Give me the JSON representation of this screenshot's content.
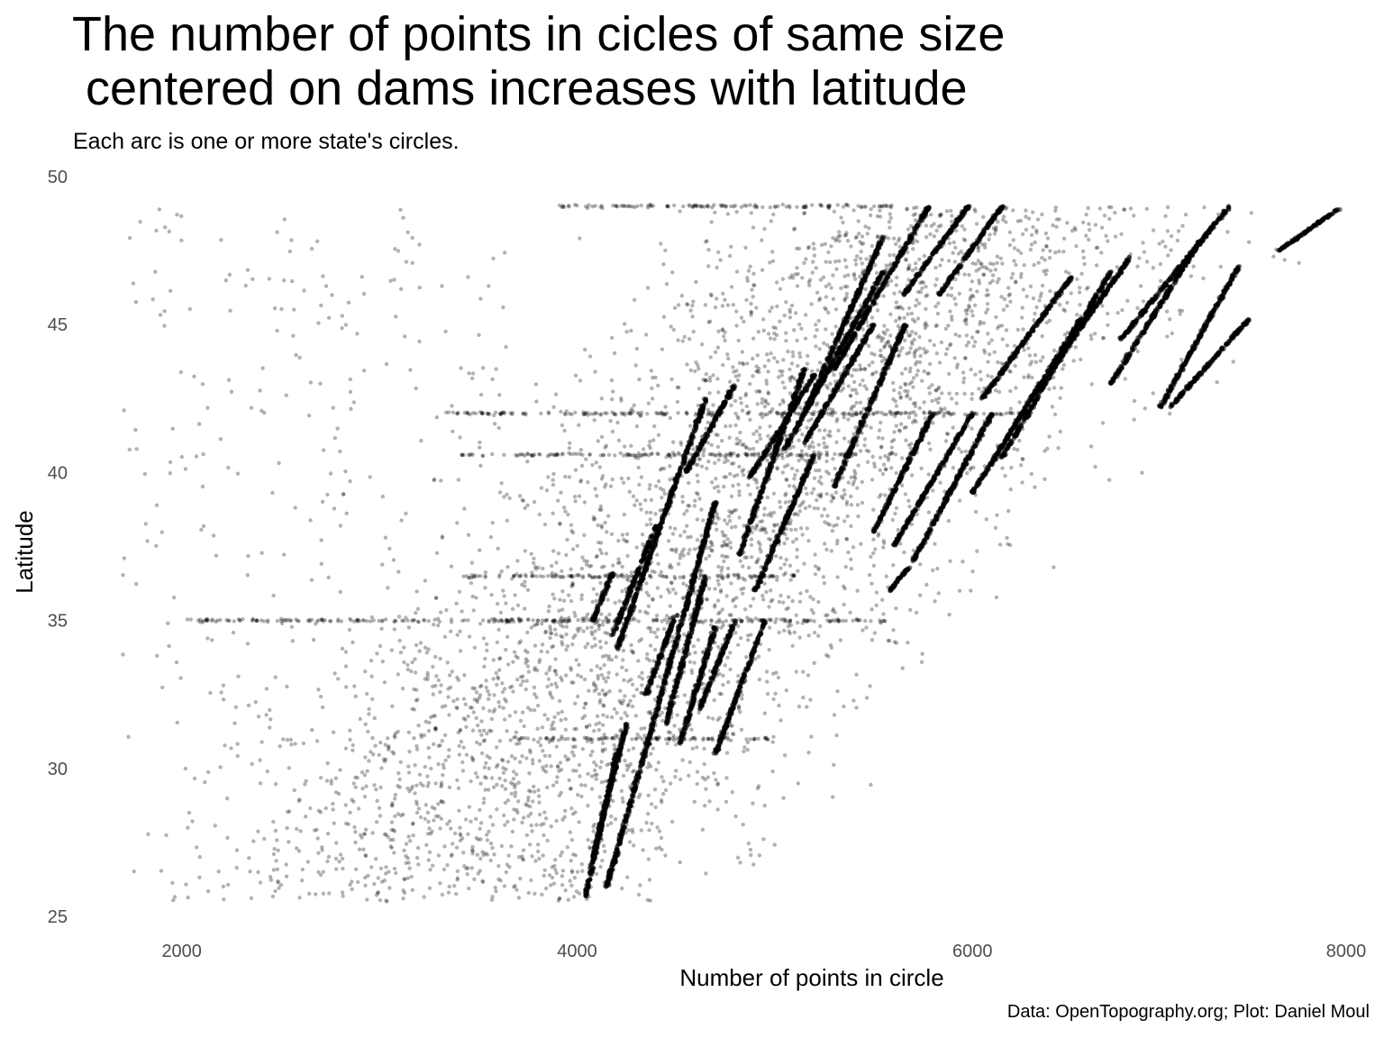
{
  "title": "The number of points in cicles of same size\n centered on dams increases with latitude",
  "subtitle": "Each arc is one or more state's circles.",
  "caption": "Data: OpenTopography.org; Plot: Daniel Moul",
  "chart_data": {
    "type": "scatter",
    "title": "The number of points in cicles of same size\n centered on dams increases with latitude",
    "subtitle": "Each arc is one or more state's circles.",
    "xlabel": "Number of points in circle",
    "ylabel": "Latitude",
    "xlim": [
      1500,
      8000
    ],
    "ylim": [
      25,
      50
    ],
    "xticks": [
      "2000",
      "4000",
      "6000",
      "8000"
    ],
    "yticks": [
      "25",
      "30",
      "35",
      "40",
      "45",
      "50"
    ],
    "grid": false,
    "point_color": "#000000",
    "point_opacity": 0.3,
    "arc_segments": [
      {
        "x0": 4040,
        "y0": 25.6,
        "x1": 4200,
        "y1": 30.5
      },
      {
        "x0": 4080,
        "y0": 27.0,
        "x1": 4250,
        "y1": 31.5
      },
      {
        "x0": 4150,
        "y0": 26.0,
        "x1": 4700,
        "y1": 39.0
      },
      {
        "x0": 4200,
        "y0": 34.0,
        "x1": 4650,
        "y1": 42.5
      },
      {
        "x0": 4080,
        "y0": 35.0,
        "x1": 4180,
        "y1": 36.6
      },
      {
        "x0": 4180,
        "y0": 34.5,
        "x1": 4400,
        "y1": 38.2
      },
      {
        "x0": 4350,
        "y0": 32.5,
        "x1": 4500,
        "y1": 35.2
      },
      {
        "x0": 4450,
        "y0": 31.5,
        "x1": 4650,
        "y1": 36.5
      },
      {
        "x0": 4520,
        "y0": 30.8,
        "x1": 4700,
        "y1": 34.8
      },
      {
        "x0": 4700,
        "y0": 30.5,
        "x1": 4950,
        "y1": 35.0
      },
      {
        "x0": 4620,
        "y0": 32.0,
        "x1": 4800,
        "y1": 35.0
      },
      {
        "x0": 4550,
        "y0": 40.0,
        "x1": 4800,
        "y1": 43.0
      },
      {
        "x0": 4820,
        "y0": 37.2,
        "x1": 5150,
        "y1": 43.5
      },
      {
        "x0": 4870,
        "y0": 39.8,
        "x1": 5200,
        "y1": 43.3
      },
      {
        "x0": 4900,
        "y0": 36.0,
        "x1": 5200,
        "y1": 40.6
      },
      {
        "x0": 5050,
        "y0": 40.8,
        "x1": 5550,
        "y1": 46.8
      },
      {
        "x0": 5150,
        "y0": 42.0,
        "x1": 5550,
        "y1": 48.0
      },
      {
        "x0": 5300,
        "y0": 43.5,
        "x1": 5780,
        "y1": 49.0
      },
      {
        "x0": 5300,
        "y0": 39.5,
        "x1": 5660,
        "y1": 45.0
      },
      {
        "x0": 5150,
        "y0": 41.0,
        "x1": 5500,
        "y1": 45.0
      },
      {
        "x0": 5500,
        "y0": 38.0,
        "x1": 5800,
        "y1": 42.0
      },
      {
        "x0": 5650,
        "y0": 46.0,
        "x1": 5980,
        "y1": 49.0
      },
      {
        "x0": 5830,
        "y0": 46.0,
        "x1": 6150,
        "y1": 49.0
      },
      {
        "x0": 5600,
        "y0": 37.5,
        "x1": 6000,
        "y1": 42.0
      },
      {
        "x0": 5700,
        "y0": 37.0,
        "x1": 6100,
        "y1": 42.0
      },
      {
        "x0": 5580,
        "y0": 36.0,
        "x1": 5680,
        "y1": 36.8
      },
      {
        "x0": 6050,
        "y0": 42.5,
        "x1": 6500,
        "y1": 46.6
      },
      {
        "x0": 6000,
        "y0": 39.3,
        "x1": 6550,
        "y1": 45.2
      },
      {
        "x0": 6150,
        "y0": 40.5,
        "x1": 6700,
        "y1": 46.8
      },
      {
        "x0": 6400,
        "y0": 43.5,
        "x1": 6800,
        "y1": 47.3
      },
      {
        "x0": 6700,
        "y0": 43.0,
        "x1": 7150,
        "y1": 47.8
      },
      {
        "x0": 6750,
        "y0": 44.5,
        "x1": 7300,
        "y1": 49.0
      },
      {
        "x0": 6950,
        "y0": 42.2,
        "x1": 7350,
        "y1": 47.0
      },
      {
        "x0": 7000,
        "y0": 42.2,
        "x1": 7400,
        "y1": 45.2
      },
      {
        "x0": 7550,
        "y0": 47.5,
        "x1": 7850,
        "y1": 48.9
      }
    ],
    "horizontal_bands": [
      {
        "y": 35.0,
        "x0": 2000,
        "x1": 5600
      },
      {
        "y": 42.0,
        "x0": 3300,
        "x1": 6300
      },
      {
        "y": 40.6,
        "x0": 3400,
        "x1": 5600
      },
      {
        "y": 36.5,
        "x0": 3400,
        "x1": 5100
      },
      {
        "y": 31.0,
        "x0": 3700,
        "x1": 5000
      },
      {
        "y": 49.0,
        "x0": 3900,
        "x1": 5600
      }
    ],
    "scatter_cloud": {
      "x_range": [
        1700,
        7900
      ],
      "y_range": [
        25.5,
        49.0
      ],
      "n_points": 4200
    }
  }
}
